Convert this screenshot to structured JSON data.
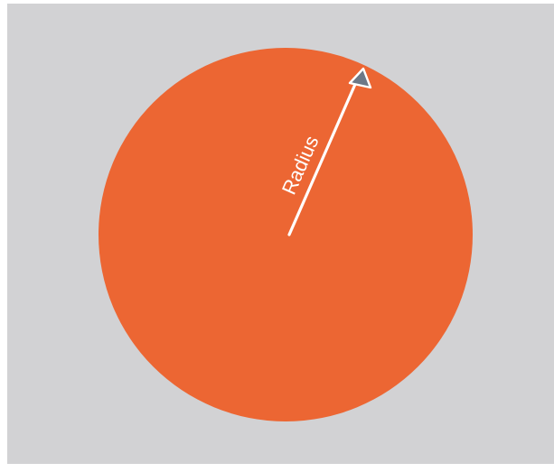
{
  "diagram": {
    "label": "Radius",
    "colors": {
      "background": "#D2D2D4",
      "circle": "#EC6633",
      "arrow_line": "#FFFFFF",
      "arrowhead_fill": "#6C7887",
      "arrowhead_stroke": "#FFFFFF",
      "label": "#FFFFFF"
    }
  }
}
